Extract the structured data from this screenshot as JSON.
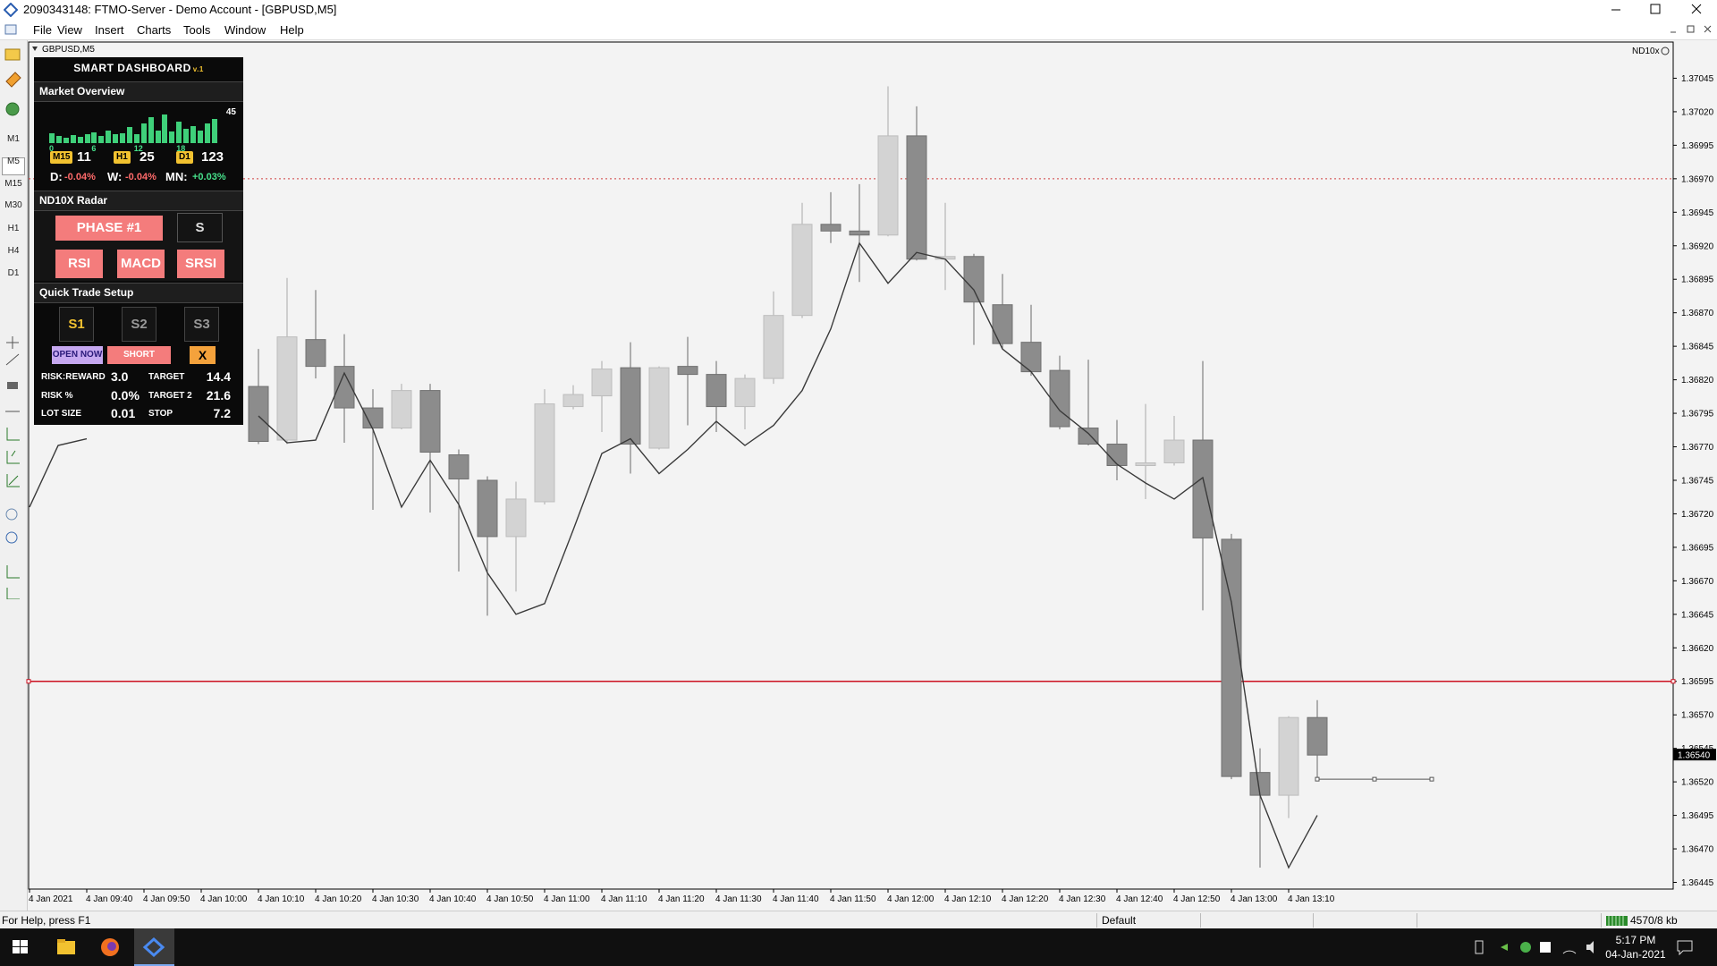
{
  "window": {
    "title": "2090343148: FTMO-Server - Demo Account - [GBPUSD,M5]",
    "menu": [
      "File",
      "View",
      "Insert",
      "Charts",
      "Tools",
      "Window",
      "Help"
    ]
  },
  "toolbar": {
    "timeframes": [
      "M1",
      "M5",
      "M15",
      "M30",
      "H1",
      "H4",
      "D1"
    ]
  },
  "chart_data": {
    "type": "candlestick",
    "symbol": "GBPUSD,M5",
    "indicator": "ND10x",
    "categories": [
      "4 Jan 2021",
      null,
      "4 Jan 09:40",
      null,
      "4 Jan 09:50",
      null,
      "4 Jan 10:00",
      null,
      "4 Jan 10:10",
      null,
      "4 Jan 10:20",
      null,
      "4 Jan 10:30",
      null,
      "4 Jan 10:40",
      null,
      "4 Jan 10:50",
      null,
      "4 Jan 11:00",
      null,
      "4 Jan 11:10",
      null,
      "4 Jan 11:20",
      null,
      "4 Jan 11:30",
      null,
      "4 Jan 11:40",
      null,
      "4 Jan 11:50",
      null,
      "4 Jan 12:00",
      null,
      "4 Jan 12:10",
      null,
      "4 Jan 12:20",
      null,
      "4 Jan 12:30",
      null,
      "4 Jan 12:40",
      null,
      "4 Jan 12:50",
      null,
      "4 Jan 13:00",
      null,
      "4 Jan 13:10",
      null
    ],
    "open": [
      null,
      null,
      null,
      null,
      null,
      null,
      null,
      null,
      1.36815,
      1.36775,
      1.3685,
      1.3683,
      1.36799,
      1.36784,
      1.36812,
      1.36764,
      1.36745,
      1.36703,
      1.36729,
      1.368,
      1.36808,
      1.36829,
      1.36769,
      1.3683,
      1.36824,
      1.368,
      1.36821,
      1.36868,
      1.36936,
      1.36931,
      1.36928,
      1.37002,
      1.3691,
      1.36912,
      1.36876,
      1.36848,
      1.36827,
      1.36784,
      1.36772,
      1.36756,
      1.36758,
      1.36775,
      1.36701,
      1.36527,
      1.3651,
      1.36568
    ],
    "high": [
      null,
      null,
      null,
      null,
      null,
      null,
      null,
      null,
      1.36843,
      1.36896,
      1.36887,
      1.36854,
      1.36813,
      1.36817,
      1.36817,
      1.36768,
      1.36748,
      1.36744,
      1.36813,
      1.36816,
      1.36834,
      1.36848,
      1.3683,
      1.36852,
      1.36834,
      1.36824,
      1.36886,
      1.36952,
      1.3696,
      1.36966,
      1.37039,
      1.37024,
      1.36952,
      1.36914,
      1.36899,
      1.36876,
      1.36838,
      1.36835,
      1.3679,
      1.36802,
      1.36793,
      1.36834,
      1.36705,
      1.36545,
      1.36569,
      1.36581
    ],
    "low": [
      null,
      null,
      null,
      null,
      null,
      null,
      null,
      null,
      1.36772,
      1.36772,
      1.36821,
      1.36773,
      1.36723,
      1.36783,
      1.36721,
      1.36677,
      1.36644,
      1.36662,
      1.36727,
      1.36798,
      1.36781,
      1.3675,
      1.36768,
      1.36786,
      1.36781,
      1.36783,
      1.36817,
      1.36866,
      1.36922,
      1.36893,
      1.36927,
      1.36909,
      1.36887,
      1.36846,
      1.36843,
      1.36823,
      1.36783,
      1.36771,
      1.36745,
      1.36731,
      1.36756,
      1.36648,
      1.36522,
      1.36456,
      1.36493,
      1.36523
    ],
    "close": [
      null,
      null,
      null,
      null,
      null,
      null,
      null,
      null,
      1.36774,
      1.36852,
      1.3683,
      1.36799,
      1.36784,
      1.36812,
      1.36766,
      1.36746,
      1.36703,
      1.36731,
      1.36802,
      1.36809,
      1.36828,
      1.36772,
      1.36829,
      1.36824,
      1.368,
      1.36821,
      1.36868,
      1.36936,
      1.36931,
      1.36928,
      1.37002,
      1.3691,
      1.36912,
      1.36878,
      1.36847,
      1.36826,
      1.36785,
      1.36772,
      1.36756,
      1.36758,
      1.36775,
      1.36702,
      1.36524,
      1.3651,
      1.36568,
      1.3654
    ],
    "up_color": "#d3d3d3",
    "down_color": "#8c8c8c",
    "line": {
      "color": "#3a3a3a",
      "values": [
        1.36725,
        1.36771,
        1.36776,
        null,
        null,
        null,
        null,
        null,
        1.36793,
        1.36773,
        1.36775,
        1.36825,
        1.36783,
        1.36725,
        1.3676,
        1.36727,
        1.36676,
        1.36645,
        1.36653,
        1.36708,
        1.36765,
        1.36776,
        1.3675,
        1.36768,
        1.36789,
        1.36771,
        1.36786,
        1.36812,
        1.36858,
        1.36922,
        1.36892,
        1.36915,
        1.3691,
        1.36887,
        1.36843,
        1.36826,
        1.36797,
        1.3678,
        1.36757,
        1.36743,
        1.36731,
        1.36747,
        1.36654,
        1.3651,
        1.36456,
        1.36495
      ]
    },
    "ylim": [
      1.3644,
      1.37072
    ],
    "yticks": [
      1.37045,
      {
        "value": 1.3702,
        "label": "1.37020"
      },
      1.36995,
      {
        "value": 1.3697,
        "label": "1.36970"
      },
      1.36945,
      {
        "value": 1.3692,
        "label": "1.36920"
      },
      1.36895,
      {
        "value": 1.3687,
        "label": "1.36870"
      },
      1.36845,
      {
        "value": 1.3682,
        "label": "1.36820"
      },
      1.36795,
      {
        "value": 1.3677,
        "label": "1.36770"
      },
      1.36745,
      {
        "value": 1.3672,
        "label": "1.36720"
      },
      1.36695,
      {
        "value": 1.3667,
        "label": "1.36670"
      },
      1.36645,
      {
        "value": 1.3662,
        "label": "1.36620"
      },
      1.36595,
      {
        "value": 1.3657,
        "label": "1.36570"
      },
      1.36545,
      {
        "value": 1.3652,
        "label": "1.36520"
      },
      1.36495,
      {
        "value": 1.3647,
        "label": "1.36470"
      },
      1.36445
    ],
    "hlines": [
      {
        "value": 1.3697,
        "color": "#d04040",
        "style": "dotted"
      },
      {
        "value": 1.36595,
        "color": "#cc1020",
        "style": "solid"
      }
    ],
    "trend_level": 1.36522,
    "bid": {
      "value": 1.3654,
      "label": "1.36540"
    }
  },
  "dashboard": {
    "title": "SMART DASHBOARD",
    "version": "v.1",
    "market_overview": {
      "title": "Market Overview",
      "histogram": {
        "peak": 45,
        "values": [
          14,
          10,
          8,
          11,
          9,
          12,
          15,
          10,
          18,
          12,
          14,
          22,
          13,
          28,
          36,
          18,
          40,
          16,
          30,
          20,
          24,
          18,
          28,
          34
        ],
        "xticks": [
          0,
          6,
          12,
          18
        ],
        "color": "#3fd07a"
      },
      "counts": [
        {
          "tf": "M15",
          "value": "11"
        },
        {
          "tf": "H1",
          "value": "25"
        },
        {
          "tf": "D1",
          "value": "123"
        }
      ],
      "changes": [
        {
          "label": "D:",
          "value": "-0.04%"
        },
        {
          "label": "W:",
          "value": "-0.04%"
        },
        {
          "label": "MN:",
          "value": "+0.03%"
        }
      ]
    },
    "radar": {
      "title": "ND10X Radar",
      "phase": "PHASE #1",
      "signal": "S",
      "indicators": [
        "RSI",
        "MACD",
        "SRSI"
      ]
    },
    "quick_trade": {
      "title": "Quick Trade Setup",
      "setups": [
        "S1",
        "S2",
        "S3"
      ],
      "actions": [
        "OPEN NOW",
        "SHORT",
        "X"
      ],
      "rows": [
        [
          "RISK:REWARD",
          "3.0",
          "TARGET",
          "14.4"
        ],
        [
          "RISK %",
          "0.0%",
          "TARGET 2",
          "21.6"
        ],
        [
          "LOT SIZE",
          "0.01",
          "STOP",
          "7.2"
        ]
      ]
    }
  },
  "status_bar": {
    "help": "For Help, press F1",
    "profile": "Default",
    "traffic": "4570/8 kb"
  },
  "taskbar": {
    "time": "5:17 PM",
    "date": "04-Jan-2021"
  }
}
